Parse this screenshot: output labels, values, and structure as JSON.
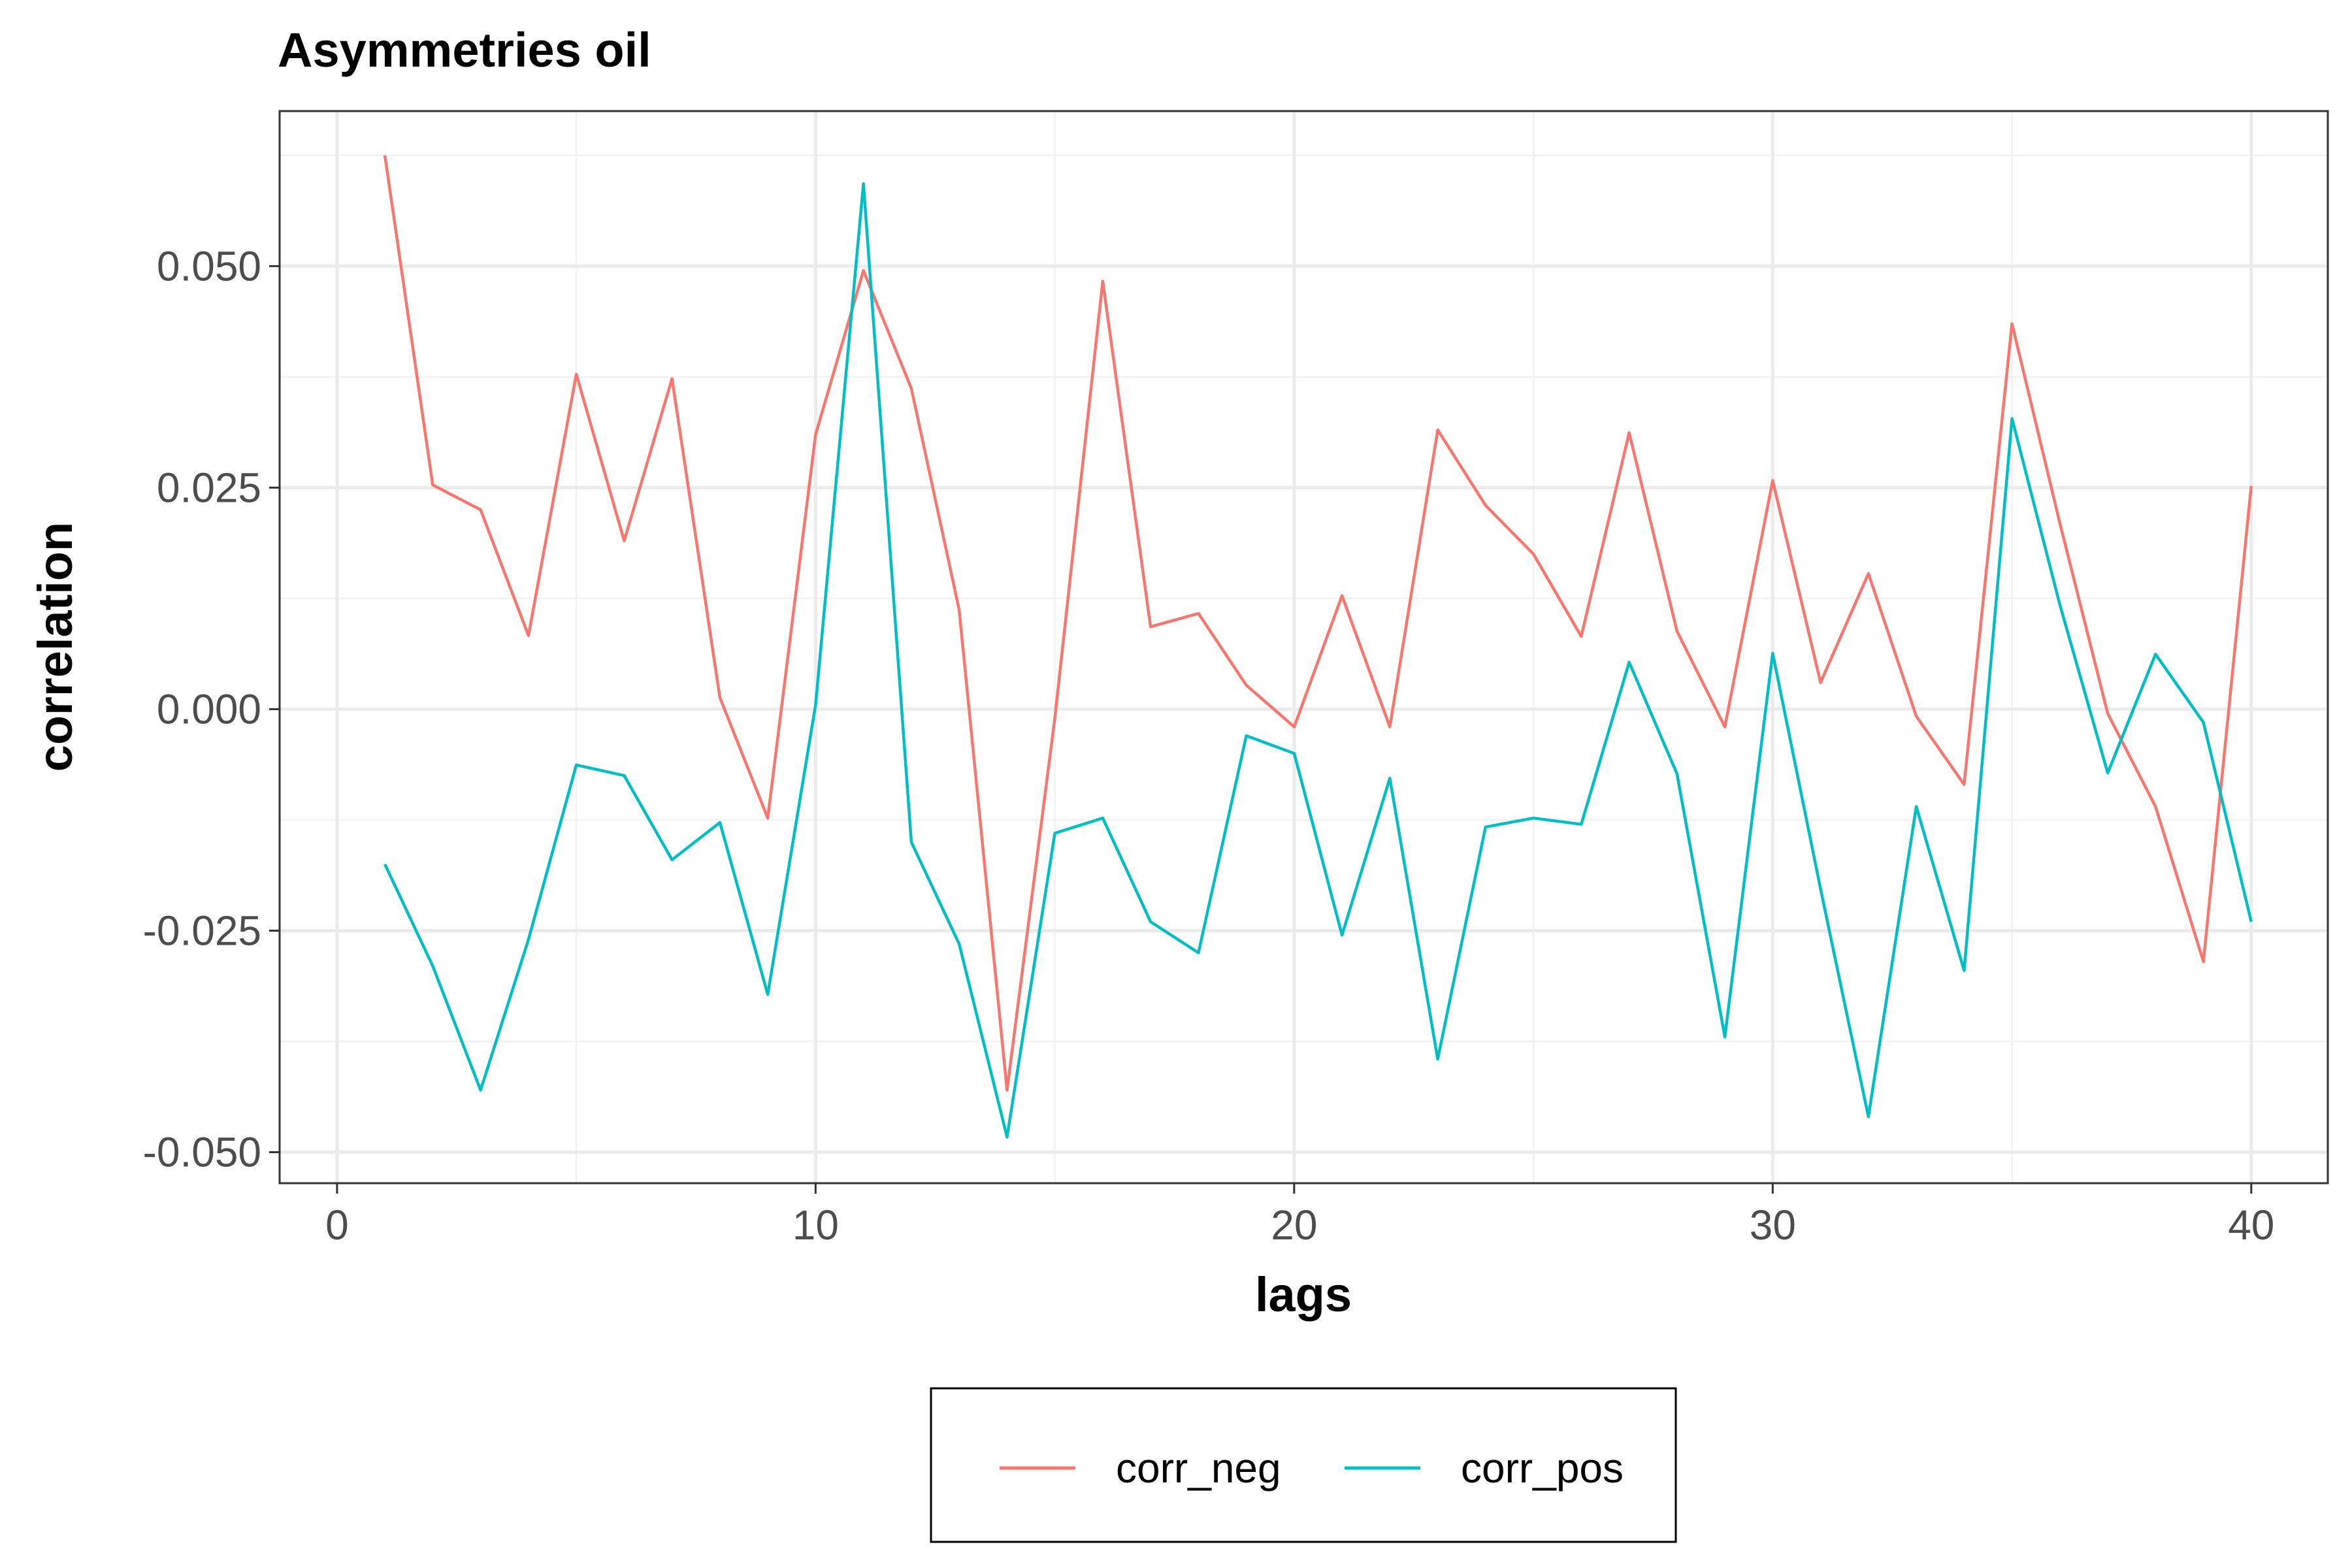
{
  "chart_data": {
    "type": "line",
    "title": "Asymmetries oil",
    "xlabel": "lags",
    "ylabel": "correlation",
    "xlim": [
      -1.2,
      41.6
    ],
    "ylim": [
      -0.0535,
      0.0675
    ],
    "x_ticks": [
      0,
      10,
      20,
      30,
      40
    ],
    "x_tick_labels": [
      "0",
      "10",
      "20",
      "30",
      "40"
    ],
    "x_minor_ticks": [
      5,
      15,
      25,
      35
    ],
    "y_ticks": [
      -0.05,
      -0.025,
      0.0,
      0.025,
      0.05
    ],
    "y_tick_labels": [
      "-0.050",
      "-0.025",
      "0.000",
      "0.025",
      "0.050"
    ],
    "y_minor_ticks": [
      -0.0375,
      -0.0125,
      0.0125,
      0.0375,
      0.0625
    ],
    "grid": true,
    "legend_position": "bottom",
    "x": [
      1,
      2,
      3,
      4,
      5,
      6,
      7,
      8,
      9,
      10,
      11,
      12,
      13,
      14,
      15,
      16,
      17,
      18,
      19,
      20,
      21,
      22,
      23,
      24,
      25,
      26,
      27,
      28,
      29,
      30,
      31,
      32,
      33,
      34,
      35,
      36,
      37,
      38,
      39,
      40
    ],
    "series": [
      {
        "name": "corr_neg",
        "color": "#F8766D",
        "values": [
          0.0625,
          0.0253,
          0.0225,
          0.0083,
          0.0378,
          0.019,
          0.0373,
          0.0013,
          -0.0123,
          0.031,
          0.0495,
          0.0362,
          0.0112,
          -0.043,
          -0.001,
          0.0483,
          0.0093,
          0.0108,
          0.0027,
          -0.002,
          0.0128,
          -0.002,
          0.0315,
          0.023,
          0.0175,
          0.0082,
          0.0312,
          0.0088,
          -0.002,
          0.0258,
          0.003,
          0.0153,
          -0.0008,
          -0.0085,
          0.0435,
          0.021,
          -0.0005,
          -0.011,
          -0.0285,
          0.0252
        ]
      },
      {
        "name": "corr_pos",
        "color": "#00BFC4",
        "values": [
          -0.0175,
          -0.029,
          -0.043,
          -0.026,
          -0.0063,
          -0.0075,
          -0.017,
          -0.0128,
          -0.0322,
          0.0005,
          0.0593,
          -0.015,
          -0.0265,
          -0.0483,
          -0.014,
          -0.0123,
          -0.024,
          -0.0275,
          -0.003,
          -0.005,
          -0.0255,
          -0.0078,
          -0.0395,
          -0.0133,
          -0.0123,
          -0.013,
          0.0053,
          -0.0073,
          -0.037,
          0.0063,
          -0.0203,
          -0.046,
          -0.011,
          -0.0295,
          0.0328,
          0.0118,
          -0.0072,
          0.0062,
          -0.0015,
          -0.024
        ]
      }
    ]
  },
  "colors": {
    "panel_border": "#333333",
    "grid_major": "#ebebeb",
    "grid_minor": "#f2f2f2",
    "tick_text": "#4d4d4d"
  }
}
